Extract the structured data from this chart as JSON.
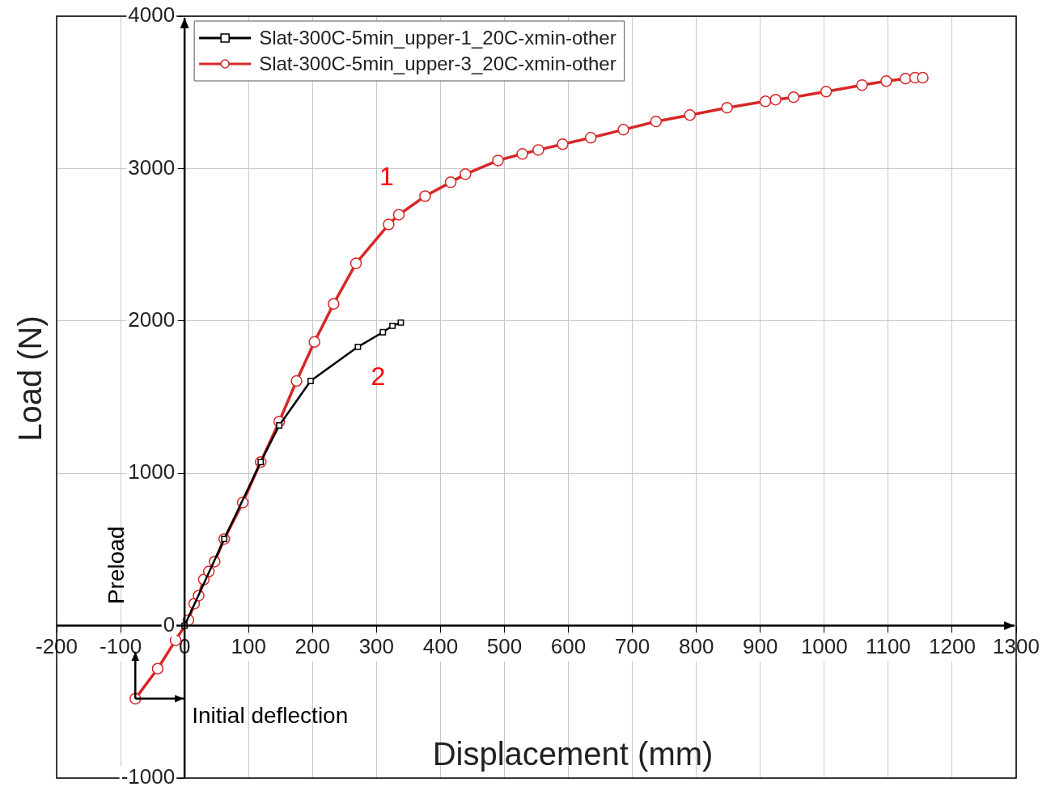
{
  "chart_data": {
    "type": "line",
    "xlabel": "Displacement (mm)",
    "ylabel": "Load (N)",
    "xlim": [
      -200,
      1300
    ],
    "xticks": [
      -200,
      -100,
      0,
      100,
      200,
      300,
      400,
      500,
      600,
      700,
      800,
      900,
      1000,
      1100,
      1200,
      1300
    ],
    "ylim": [
      -1000,
      4000
    ],
    "yticks": [
      -1000,
      0,
      1000,
      2000,
      3000,
      4000
    ],
    "grid": true,
    "legend": "top left",
    "series": [
      {
        "name": "Slat-300C-5min_upper-1_20C-xmin-other",
        "color": "#000000",
        "marker": "square",
        "x": [
          0,
          62,
          119,
          148,
          197,
          271,
          310,
          325,
          338
        ],
        "values": [
          0,
          569,
          1074,
          1314,
          1606,
          1830,
          1926,
          1968,
          1989
        ]
      },
      {
        "name": "Slat-300C-5min_upper-3_20C-xmin-other",
        "color": "#d62728",
        "marker": "circle",
        "x": [
          -77,
          -42,
          -14,
          6,
          15,
          22,
          30,
          38,
          47,
          62,
          91,
          119,
          148,
          175,
          203,
          233,
          268,
          319,
          335,
          376,
          416,
          439,
          490,
          528,
          553,
          591,
          635,
          686,
          737,
          790,
          848,
          908,
          924,
          952,
          1003,
          1059,
          1097,
          1127,
          1142,
          1154
        ],
        "values": [
          -479,
          -282,
          -96,
          37,
          144,
          197,
          303,
          356,
          420,
          569,
          808,
          1074,
          1340,
          1606,
          1862,
          2112,
          2378,
          2633,
          2697,
          2819,
          2910,
          2963,
          3053,
          3096,
          3122,
          3160,
          3202,
          3255,
          3309,
          3351,
          3399,
          3441,
          3452,
          3468,
          3505,
          3548,
          3574,
          3590,
          3596,
          3596
        ]
      }
    ],
    "annotations": [
      "1",
      "2",
      "Preload",
      "Initial deflection"
    ]
  }
}
